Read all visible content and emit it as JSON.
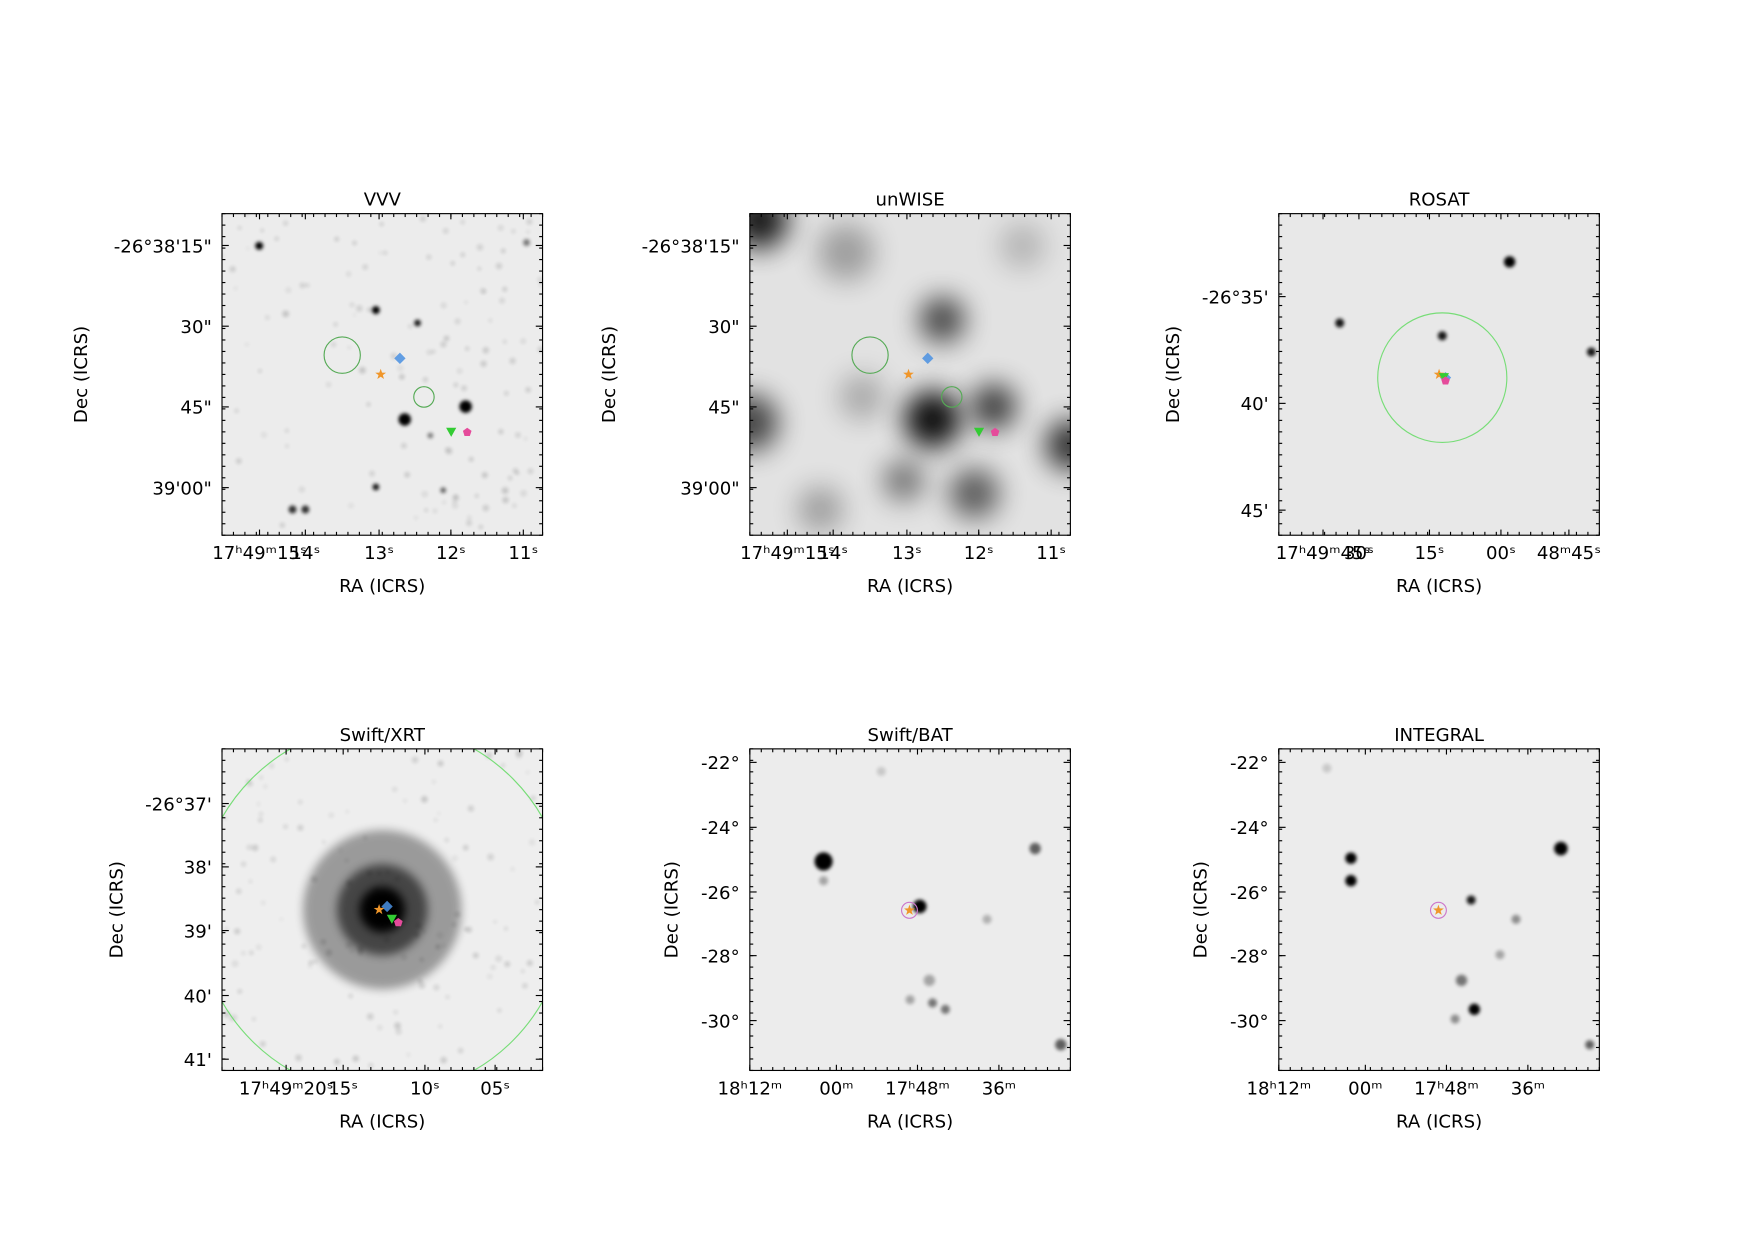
{
  "figure": {
    "panels": [
      {
        "title": "VVV",
        "xlabel": "RA (ICRS)",
        "ylabel": "Dec (ICRS)",
        "xticks": [
          "17ʰ49ᵐ15ˢ",
          "14ˢ",
          "13ˢ",
          "12ˢ",
          "11ˢ"
        ],
        "yticks": [
          "-26°38'15\"",
          "30\"",
          "45\"",
          "39'00\""
        ]
      },
      {
        "title": "unWISE",
        "xlabel": "RA (ICRS)",
        "ylabel": "Dec (ICRS)",
        "xticks": [
          "17ʰ49ᵐ15ˢ",
          "14ˢ",
          "13ˢ",
          "12ˢ",
          "11ˢ"
        ],
        "yticks": [
          "-26°38'15\"",
          "30\"",
          "45\"",
          "39'00\""
        ]
      },
      {
        "title": "ROSAT",
        "xlabel": "RA (ICRS)",
        "ylabel": "Dec (ICRS)",
        "xticks": [
          "17ʰ49ᵐ45ˢ",
          "30ˢ",
          "15ˢ",
          "00ˢ",
          "48ᵐ45ˢ"
        ],
        "yticks": [
          "-26°35'",
          "40'",
          "45'"
        ]
      },
      {
        "title": "Swift/XRT",
        "xlabel": "RA (ICRS)",
        "ylabel": "Dec (ICRS)",
        "xticks": [
          "17ʰ49ᵐ20ˢ",
          "15ˢ",
          "10ˢ",
          "05ˢ"
        ],
        "yticks": [
          "-26°37'",
          "38'",
          "39'",
          "40'",
          "41'"
        ]
      },
      {
        "title": "Swift/BAT",
        "xlabel": "RA (ICRS)",
        "ylabel": "Dec (ICRS)",
        "xticks": [
          "18ʰ12ᵐ",
          "00ᵐ",
          "17ʰ48ᵐ",
          "36ᵐ"
        ],
        "yticks": [
          "-22°",
          "-24°",
          "-26°",
          "-28°",
          "-30°"
        ]
      },
      {
        "title": "INTEGRAL",
        "xlabel": "RA (ICRS)",
        "ylabel": "Dec (ICRS)",
        "xticks": [
          "18ʰ12ᵐ",
          "00ᵐ",
          "17ʰ48ᵐ",
          "36ᵐ"
        ],
        "yticks": [
          "-22°",
          "-24°",
          "-26°",
          "-28°",
          "-30°"
        ]
      }
    ]
  }
}
